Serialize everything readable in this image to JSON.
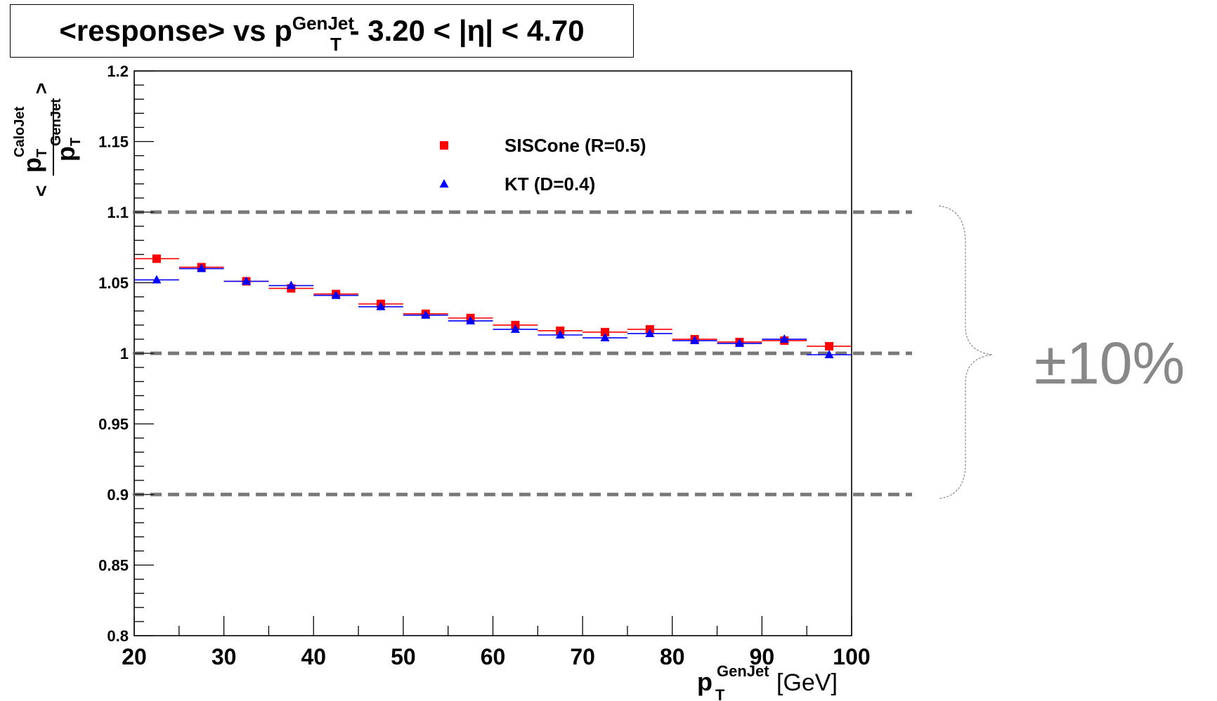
{
  "title": {
    "prefix": "<response> vs p",
    "sup": "GenJet",
    "sub": "T",
    "suffix": "- 3.20 < |η| < 4.70"
  },
  "annotation": "±10%",
  "chart_data": {
    "type": "scatter",
    "title": "<response> vs pT GenJet - 3.20 < |η| < 4.70",
    "xlabel": "pT GenJet [GeV]",
    "ylabel": "< pT CaloJet / pT GenJet >",
    "xlabel_parts": {
      "main": "p",
      "sup": "GenJet",
      "sub": "T",
      "unit": "[GeV]"
    },
    "ylabel_parts": {
      "num_main": "p",
      "num_sup": "CaloJet",
      "num_sub": "T",
      "den_main": "p",
      "den_sup": "GenJet",
      "den_sub": "T",
      "left": "<",
      "right": ">"
    },
    "xlim": [
      20,
      100
    ],
    "ylim": [
      0.8,
      1.2
    ],
    "x_ticks": [
      20,
      30,
      40,
      50,
      60,
      70,
      80,
      90,
      100
    ],
    "y_ticks": [
      0.8,
      0.85,
      0.9,
      0.95,
      1,
      1.05,
      1.1,
      1.15,
      1.2
    ],
    "y_tick_labels": [
      "0.8",
      "0.85",
      "0.9",
      "0.95",
      "1",
      "1.05",
      "1.1",
      "1.15",
      "1.2"
    ],
    "reference_lines": [
      0.9,
      1.0,
      1.1
    ],
    "legend_position": "top-center",
    "series": [
      {
        "name": "SISCone (R=0.5)",
        "color": "#ff0000",
        "marker": "square",
        "points": [
          {
            "x": 22.5,
            "y": 1.067
          },
          {
            "x": 27.5,
            "y": 1.061
          },
          {
            "x": 32.5,
            "y": 1.051
          },
          {
            "x": 37.5,
            "y": 1.046
          },
          {
            "x": 42.5,
            "y": 1.042
          },
          {
            "x": 47.5,
            "y": 1.035
          },
          {
            "x": 52.5,
            "y": 1.028
          },
          {
            "x": 57.5,
            "y": 1.025
          },
          {
            "x": 62.5,
            "y": 1.02
          },
          {
            "x": 67.5,
            "y": 1.016
          },
          {
            "x": 72.5,
            "y": 1.015
          },
          {
            "x": 77.5,
            "y": 1.017
          },
          {
            "x": 82.5,
            "y": 1.01
          },
          {
            "x": 87.5,
            "y": 1.008
          },
          {
            "x": 92.5,
            "y": 1.009
          },
          {
            "x": 97.5,
            "y": 1.005
          }
        ]
      },
      {
        "name": "KT (D=0.4)",
        "color": "#0000ff",
        "marker": "triangle",
        "points": [
          {
            "x": 22.5,
            "y": 1.052
          },
          {
            "x": 27.5,
            "y": 1.06
          },
          {
            "x": 32.5,
            "y": 1.051
          },
          {
            "x": 37.5,
            "y": 1.048
          },
          {
            "x": 42.5,
            "y": 1.041
          },
          {
            "x": 47.5,
            "y": 1.033
          },
          {
            "x": 52.5,
            "y": 1.027
          },
          {
            "x": 57.5,
            "y": 1.023
          },
          {
            "x": 62.5,
            "y": 1.017
          },
          {
            "x": 67.5,
            "y": 1.013
          },
          {
            "x": 72.5,
            "y": 1.011
          },
          {
            "x": 77.5,
            "y": 1.014
          },
          {
            "x": 82.5,
            "y": 1.009
          },
          {
            "x": 87.5,
            "y": 1.007
          },
          {
            "x": 92.5,
            "y": 1.01
          },
          {
            "x": 97.5,
            "y": 0.999
          }
        ]
      }
    ]
  }
}
